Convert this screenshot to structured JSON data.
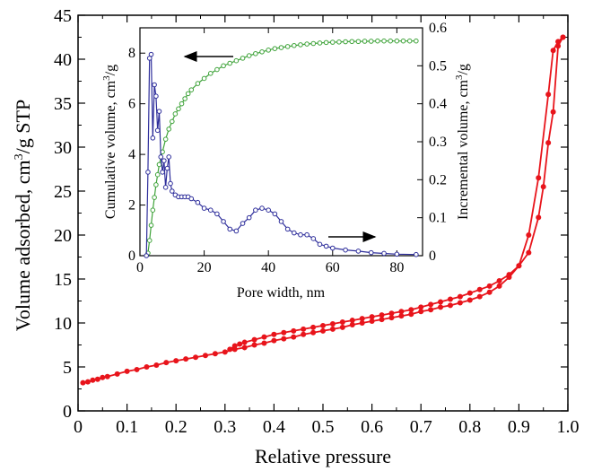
{
  "chart_data": [
    {
      "type": "line",
      "xlabel": "Relative pressure",
      "ylabel_main": "Volume adsorbed, cm",
      "ylabel_sup": "3",
      "ylabel_tail": "/g STP",
      "xlim": [
        0,
        1.0
      ],
      "ylim": [
        0,
        45
      ],
      "xticks": [
        "0",
        "0.1",
        "0.2",
        "0.3",
        "0.4",
        "0.5",
        "0.6",
        "0.7",
        "0.8",
        "0.9",
        "1.0"
      ],
      "yticks": [
        "0",
        "5",
        "10",
        "15",
        "20",
        "25",
        "30",
        "35",
        "40",
        "45"
      ],
      "color": "#e8141b",
      "series": [
        {
          "x": [
            0.01,
            0.02,
            0.03,
            0.04,
            0.05,
            0.06,
            0.08,
            0.1,
            0.12,
            0.14,
            0.16,
            0.18,
            0.2,
            0.22,
            0.24,
            0.26,
            0.28,
            0.3,
            0.32,
            0.34,
            0.36,
            0.38,
            0.4,
            0.42,
            0.44,
            0.46,
            0.48,
            0.5,
            0.52,
            0.54,
            0.56,
            0.58,
            0.6,
            0.62,
            0.64,
            0.66,
            0.68,
            0.7,
            0.72,
            0.74,
            0.76,
            0.78,
            0.8,
            0.82,
            0.84,
            0.86,
            0.88,
            0.9,
            0.92,
            0.94,
            0.96,
            0.97,
            0.98,
            0.99
          ],
          "y": [
            3.2,
            3.3,
            3.5,
            3.6,
            3.8,
            3.9,
            4.2,
            4.5,
            4.7,
            5.0,
            5.2,
            5.5,
            5.7,
            5.9,
            6.1,
            6.3,
            6.5,
            6.7,
            7.0,
            7.2,
            7.5,
            7.7,
            8.0,
            8.2,
            8.4,
            8.7,
            8.9,
            9.1,
            9.3,
            9.5,
            9.8,
            10.0,
            10.2,
            10.4,
            10.6,
            10.8,
            11.0,
            11.3,
            11.5,
            11.8,
            12.0,
            12.3,
            12.6,
            13.0,
            13.5,
            14.2,
            15.2,
            16.5,
            20.0,
            26.5,
            36.0,
            41.0,
            42.0,
            42.5
          ]
        },
        {
          "x": [
            0.99,
            0.98,
            0.97,
            0.96,
            0.95,
            0.94,
            0.92,
            0.9,
            0.88,
            0.86,
            0.84,
            0.82,
            0.8,
            0.78,
            0.76,
            0.74,
            0.72,
            0.7,
            0.68,
            0.66,
            0.64,
            0.62,
            0.6,
            0.58,
            0.56,
            0.54,
            0.52,
            0.5,
            0.48,
            0.46,
            0.44,
            0.42,
            0.4,
            0.38,
            0.36,
            0.34,
            0.33,
            0.32,
            0.31
          ],
          "y": [
            42.5,
            41.5,
            34.0,
            30.5,
            25.5,
            22.0,
            18.0,
            16.5,
            15.5,
            14.8,
            14.2,
            13.8,
            13.4,
            13.0,
            12.7,
            12.4,
            12.1,
            11.8,
            11.5,
            11.3,
            11.1,
            10.9,
            10.7,
            10.5,
            10.3,
            10.1,
            9.9,
            9.7,
            9.5,
            9.3,
            9.1,
            8.9,
            8.7,
            8.4,
            8.1,
            7.8,
            7.6,
            7.4,
            7.0
          ]
        }
      ]
    },
    {
      "type": "line",
      "xlabel": "Pore width, nm",
      "ylabel_left": "Cumulative volume, cm",
      "ylabel_left_sup": "3",
      "ylabel_left_tail": "/g",
      "ylabel_right": "Incremental volume, cm",
      "ylabel_right_sup": "3",
      "ylabel_right_tail": "/g",
      "xlim": [
        0,
        88
      ],
      "ylim_left": [
        0,
        9
      ],
      "ylim_right": [
        0,
        0.6
      ],
      "xticks": [
        "0",
        "20",
        "40",
        "60",
        "80"
      ],
      "yticks_left": [
        "0",
        "2",
        "4",
        "6",
        "8"
      ],
      "yticks_right": [
        "0",
        "0.1",
        "0.2",
        "0.3",
        "0.4",
        "0.5",
        "0.6"
      ],
      "series": [
        {
          "axis": "left",
          "color": "#3fa33a",
          "x": [
            2.5,
            3,
            3.5,
            4,
            4.5,
            5,
            5.5,
            6,
            7,
            8,
            9,
            10,
            11,
            12,
            13,
            14,
            15,
            16,
            18,
            20,
            22,
            24,
            26,
            28,
            30,
            32,
            34,
            36,
            38,
            40,
            42,
            44,
            46,
            48,
            50,
            52,
            54,
            56,
            58,
            60,
            62,
            64,
            66,
            68,
            70,
            72,
            74,
            76,
            78,
            80,
            82,
            84,
            86
          ],
          "y": [
            0.1,
            0.6,
            1.2,
            1.8,
            2.3,
            2.8,
            3.2,
            3.6,
            4.1,
            4.6,
            5.0,
            5.3,
            5.6,
            5.8,
            6.0,
            6.2,
            6.4,
            6.55,
            6.8,
            7.0,
            7.2,
            7.35,
            7.5,
            7.6,
            7.7,
            7.8,
            7.9,
            7.98,
            8.05,
            8.12,
            8.18,
            8.22,
            8.26,
            8.3,
            8.33,
            8.36,
            8.38,
            8.4,
            8.42,
            8.43,
            8.44,
            8.45,
            8.46,
            8.46,
            8.47,
            8.47,
            8.48,
            8.48,
            8.48,
            8.48,
            8.48,
            8.48,
            8.48
          ]
        },
        {
          "axis": "right",
          "color": "#2e2e9b",
          "x": [
            2,
            2.5,
            3,
            3.5,
            4,
            4.5,
            5,
            5.5,
            6,
            6.5,
            7,
            7.5,
            8,
            8.5,
            9,
            9.5,
            10,
            11,
            12,
            13,
            14,
            15,
            16,
            18,
            20,
            22,
            24,
            26,
            28,
            30,
            32,
            34,
            36,
            38,
            40,
            42,
            44,
            46,
            48,
            50,
            52,
            54,
            56,
            58,
            60,
            64,
            68,
            72,
            76,
            80,
            86
          ],
          "y": [
            0.0,
            0.22,
            0.52,
            0.53,
            0.31,
            0.45,
            0.42,
            0.33,
            0.38,
            0.26,
            0.22,
            0.25,
            0.18,
            0.23,
            0.26,
            0.19,
            0.17,
            0.16,
            0.155,
            0.155,
            0.155,
            0.155,
            0.15,
            0.14,
            0.125,
            0.12,
            0.11,
            0.09,
            0.07,
            0.065,
            0.085,
            0.1,
            0.12,
            0.125,
            0.12,
            0.11,
            0.09,
            0.07,
            0.06,
            0.055,
            0.055,
            0.045,
            0.03,
            0.025,
            0.02,
            0.015,
            0.012,
            0.008,
            0.006,
            0.004,
            0.003
          ]
        }
      ]
    }
  ]
}
